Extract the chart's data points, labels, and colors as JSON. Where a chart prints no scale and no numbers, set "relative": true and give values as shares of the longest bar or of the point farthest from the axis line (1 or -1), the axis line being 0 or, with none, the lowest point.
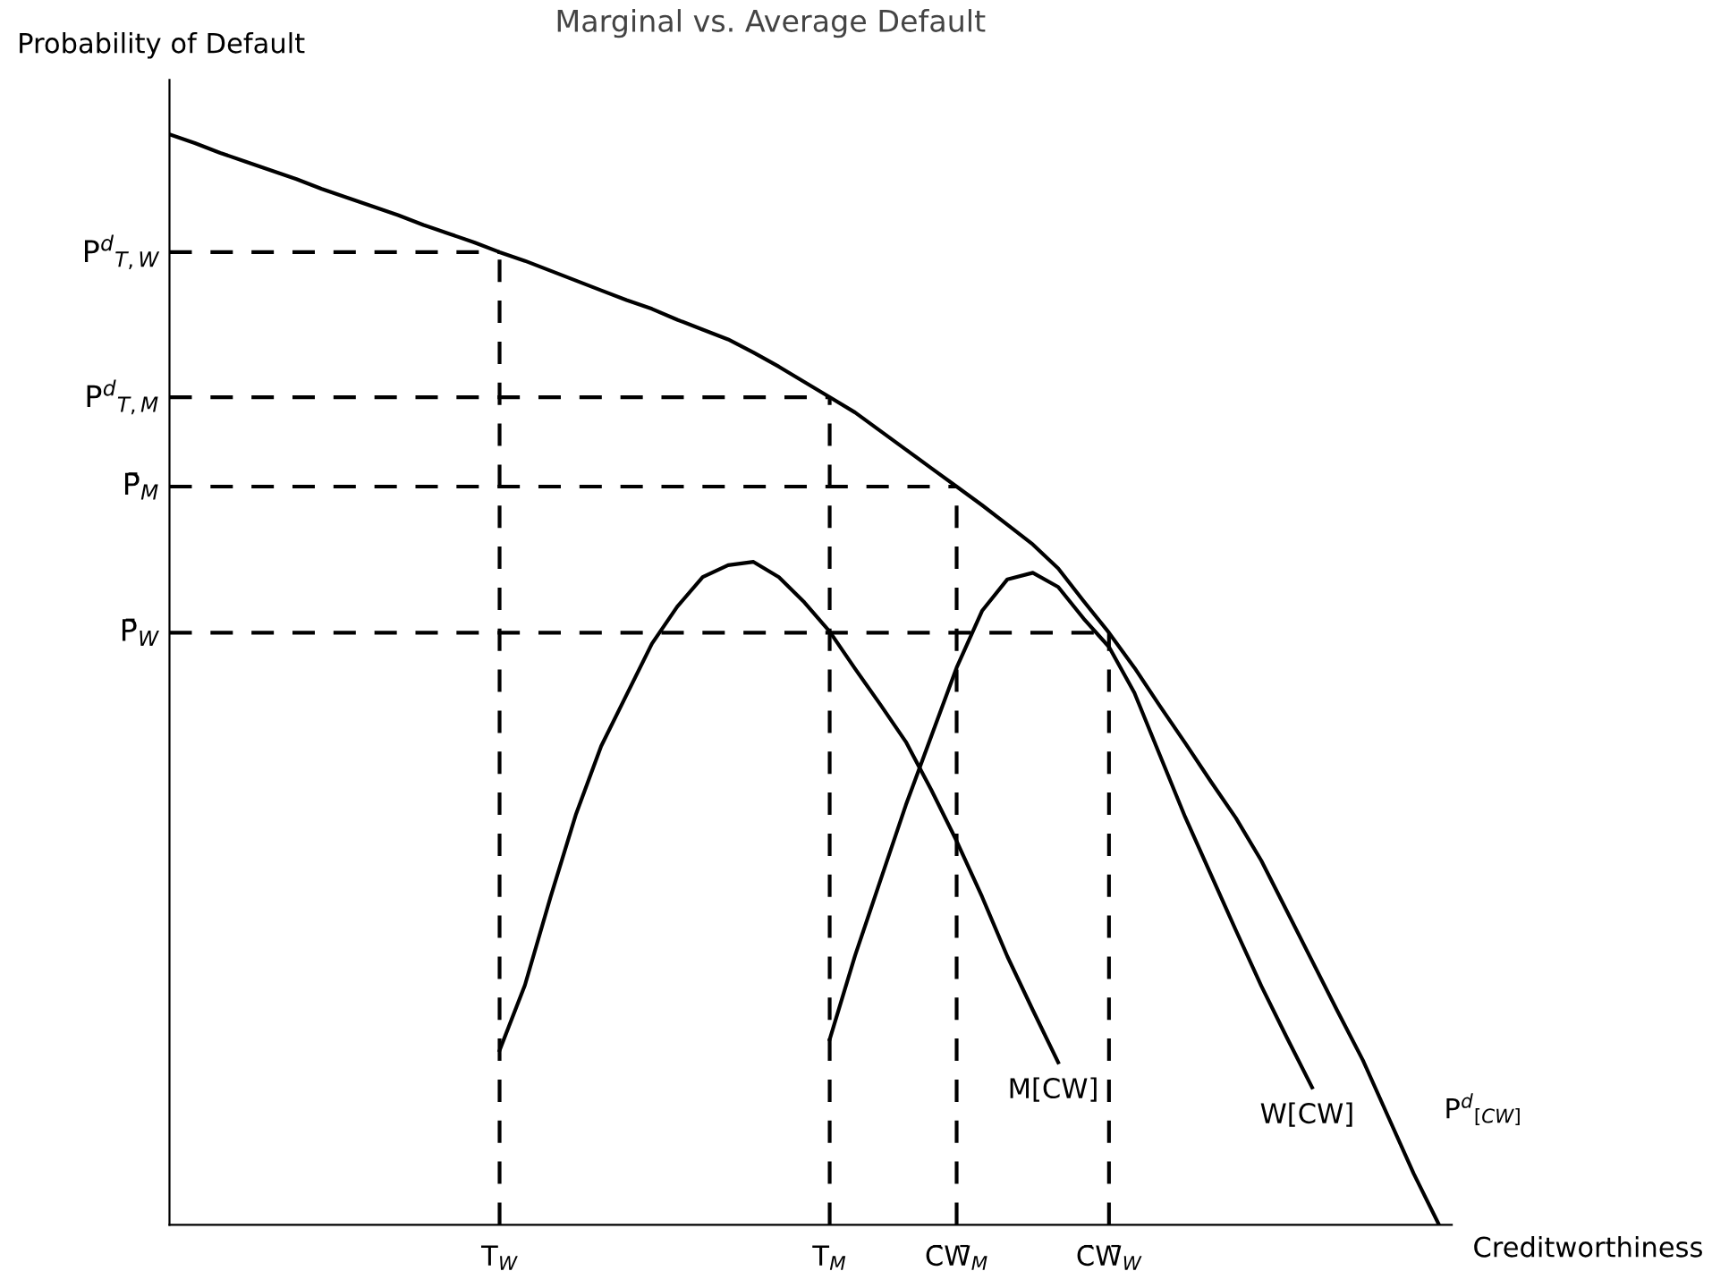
{
  "chart_data": {
    "type": "line",
    "relative": true,
    "title": "Marginal vs. Average Default",
    "xlabel": "Creditworthiness",
    "ylabel": "Probability of Default",
    "legend": false,
    "grid": false,
    "marker": "none",
    "line_style": "solid",
    "categories": [
      null,
      null,
      null,
      null,
      null,
      null,
      null,
      null,
      null,
      null,
      null,
      null,
      null,
      "T$_{W}$",
      null,
      null,
      null,
      null,
      null,
      null,
      null,
      null,
      null,
      null,
      null,
      null,
      "T$_{M}$",
      null,
      null,
      null,
      null,
      "C̄W̄$_{M}$",
      null,
      null,
      null,
      null,
      null,
      "C̄W̄$_{W}$",
      null,
      null,
      null,
      null,
      null,
      null,
      null,
      null,
      null,
      null,
      null,
      null,
      null
    ],
    "series": [
      {
        "name": "P$^{d}$$_{[CW]}$",
        "color": "#000000",
        "values": [
          1.0,
          0.992,
          0.983,
          0.975,
          0.967,
          0.959,
          0.95,
          0.942,
          0.934,
          0.926,
          0.917,
          0.909,
          0.901,
          0.892,
          0.884,
          0.875,
          0.866,
          0.857,
          0.848,
          0.84,
          0.83,
          0.821,
          0.812,
          0.8,
          0.787,
          0.773,
          0.759,
          0.745,
          0.728,
          0.711,
          0.694,
          0.677,
          0.66,
          0.642,
          0.624,
          0.602,
          0.572,
          0.543,
          0.511,
          0.476,
          0.442,
          0.407,
          0.373,
          0.334,
          0.288,
          0.242,
          0.196,
          0.151,
          0.099,
          0.047,
          0
        ]
      },
      {
        "name": "M[CW]",
        "color": "#000000",
        "values": [
          null,
          null,
          null,
          null,
          null,
          null,
          null,
          null,
          null,
          null,
          null,
          null,
          null,
          0.16,
          0.22,
          0.3,
          0.376,
          0.439,
          0.486,
          0.533,
          0.567,
          0.594,
          0.605,
          0.608,
          0.594,
          0.571,
          0.544,
          0.51,
          0.477,
          0.443,
          0.399,
          0.352,
          0.301,
          0.246,
          0.197,
          0.149,
          null,
          null,
          null,
          null,
          null,
          null,
          null,
          null,
          null,
          null,
          null,
          null,
          null,
          null,
          null
        ]
      },
      {
        "name": "W[CW]",
        "color": "#000000",
        "values": [
          null,
          null,
          null,
          null,
          null,
          null,
          null,
          null,
          null,
          null,
          null,
          null,
          null,
          null,
          null,
          null,
          null,
          null,
          null,
          null,
          null,
          null,
          null,
          null,
          null,
          null,
          0.17,
          0.247,
          0.316,
          0.385,
          0.448,
          0.511,
          0.563,
          0.592,
          0.598,
          0.585,
          0.556,
          0.53,
          0.488,
          0.431,
          0.374,
          0.322,
          0.27,
          0.219,
          0.172,
          0.126,
          null,
          null,
          null,
          null,
          null
        ]
      }
    ],
    "ref_lines": [
      {
        "axis": "y",
        "value": 0.892,
        "label": "P$^{d}$$_{T,W}$",
        "color": "#000000",
        "line_style": "dashed"
      },
      {
        "axis": "y",
        "value": 0.759,
        "label": "P$^{d}$$_{T,M}$",
        "color": "#000000",
        "line_style": "dashed"
      },
      {
        "axis": "y",
        "value": 0.677,
        "label": "P̄$_{M}$",
        "color": "#000000",
        "line_style": "dashed"
      },
      {
        "axis": "y",
        "value": 0.543,
        "label": "P̄$_{W}$",
        "color": "#000000",
        "line_style": "dashed"
      },
      {
        "axis": "x",
        "value": "T$_{W}$",
        "color": "#000000",
        "line_style": "dashed"
      },
      {
        "axis": "x",
        "value": "T$_{M}$",
        "color": "#000000",
        "line_style": "dashed"
      },
      {
        "axis": "x",
        "value": "C̄W̄$_{M}$",
        "color": "#000000",
        "line_style": "dashed"
      },
      {
        "axis": "x",
        "value": "C̄W̄$_{W}$",
        "color": "#000000",
        "line_style": "dashed"
      }
    ]
  }
}
